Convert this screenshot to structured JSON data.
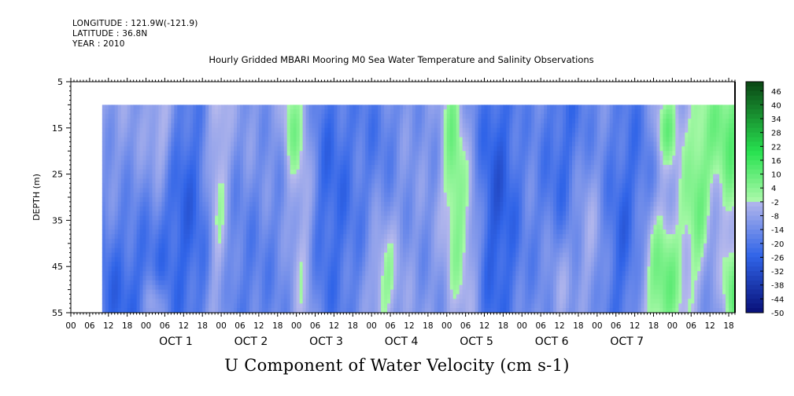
{
  "header": {
    "longitude": "LONGITUDE : 121.9W(-121.9)",
    "latitude": "LATITUDE : 36.8N",
    "year": "YEAR : 2010"
  },
  "chart_data": {
    "type": "heatmap",
    "title": "Hourly Gridded MBARI Mooring M0 Sea Water Temperature and Salinity Observations",
    "caption": "U Component of Water Velocity (cm s-1)",
    "ylabel": "DEPTH (m)",
    "ylim": [
      5,
      55
    ],
    "y_inverted": true,
    "y_ticks": [
      "5",
      "15",
      "25",
      "35",
      "45",
      "55"
    ],
    "x_hour_ticks": [
      "00",
      "06",
      "12",
      "18",
      "00",
      "06",
      "12",
      "18",
      "00",
      "06",
      "12",
      "18",
      "00",
      "06",
      "12",
      "18",
      "00",
      "06",
      "12",
      "18",
      "00",
      "06",
      "12",
      "18",
      "00",
      "06",
      "12",
      "18",
      "00",
      "06",
      "12",
      "18",
      "00",
      "06",
      "12",
      "18"
    ],
    "x_day_labels": [
      "OCT  1",
      "OCT  2",
      "OCT  3",
      "OCT  4",
      "OCT  5",
      "OCT  6",
      "OCT  7"
    ],
    "time_range_hours": [
      -24,
      188
    ],
    "data_time_range_hours": [
      -14,
      188
    ],
    "data_depth_range_m": [
      10,
      55
    ],
    "colorbar_labels": [
      "46",
      "40",
      "34",
      "28",
      "22",
      "16",
      "10",
      "4",
      "-2",
      "-8",
      "-14",
      "-20",
      "-26",
      "-32",
      "-38",
      "-44",
      "-50"
    ],
    "colorbar_range": [
      -50,
      50
    ],
    "field_description": "u-velocity mostly -25 to 0 cm/s (blue), with vertical green bands of positive values near hours 1, 23, 50, 98, 140, 162 and strong positive flow (up to ~12) late Oct 6-7",
    "features": [
      {
        "t": -8,
        "d": 52,
        "u": -24,
        "st": 10,
        "sd": 15
      },
      {
        "t": 5,
        "d": 15,
        "u": 5,
        "st": 3,
        "sd": 10
      },
      {
        "t": 3,
        "d": 53,
        "u": 5,
        "st": 2.5,
        "sd": 4
      },
      {
        "t": 12,
        "d": 30,
        "u": -24,
        "st": 7,
        "sd": 25
      },
      {
        "t": 23,
        "d": 30,
        "u": 6,
        "st": 2.5,
        "sd": 30
      },
      {
        "t": 31,
        "d": 50,
        "u": -18,
        "st": 9,
        "sd": 20
      },
      {
        "t": 46,
        "d": 15,
        "u": 4,
        "st": 2,
        "sd": 8
      },
      {
        "t": 50,
        "d": 32,
        "u": 7,
        "st": 3,
        "sd": 30
      },
      {
        "t": 58,
        "d": 30,
        "u": -24,
        "st": 9,
        "sd": 30
      },
      {
        "t": 76,
        "d": 48,
        "u": 4,
        "st": 3,
        "sd": 8
      },
      {
        "t": 75,
        "d": 15,
        "u": -16,
        "st": 5,
        "sd": 12
      },
      {
        "t": 90,
        "d": 35,
        "u": -12,
        "st": 6,
        "sd": 30
      },
      {
        "t": 98,
        "d": 22,
        "u": 8,
        "st": 2.5,
        "sd": 18
      },
      {
        "t": 103,
        "d": 40,
        "u": 3,
        "st": 3,
        "sd": 14
      },
      {
        "t": 112,
        "d": 32,
        "u": -28,
        "st": 6,
        "sd": 30
      },
      {
        "t": 132,
        "d": 50,
        "u": 4,
        "st": 3,
        "sd": 10
      },
      {
        "t": 135,
        "d": 30,
        "u": -26,
        "st": 7,
        "sd": 30
      },
      {
        "t": 140,
        "d": 38,
        "u": 6,
        "st": 4,
        "sd": 14
      },
      {
        "t": 151,
        "d": 45,
        "u": -20,
        "st": 4,
        "sd": 25
      },
      {
        "t": 158,
        "d": 28,
        "u": -20,
        "st": 5,
        "sd": 25
      },
      {
        "t": 164,
        "d": 48,
        "u": 12,
        "st": 5,
        "sd": 12
      },
      {
        "t": 166,
        "d": 15,
        "u": 8,
        "st": 3,
        "sd": 6
      },
      {
        "t": 176,
        "d": 32,
        "u": 5,
        "st": 3,
        "sd": 14
      },
      {
        "t": 182,
        "d": 40,
        "u": -18,
        "st": 4,
        "sd": 20
      },
      {
        "t": 185,
        "d": 18,
        "u": 12,
        "st": 6,
        "sd": 14
      },
      {
        "t": 187,
        "d": 50,
        "u": 10,
        "st": 3,
        "sd": 8
      }
    ],
    "baseline_u": -9
  }
}
